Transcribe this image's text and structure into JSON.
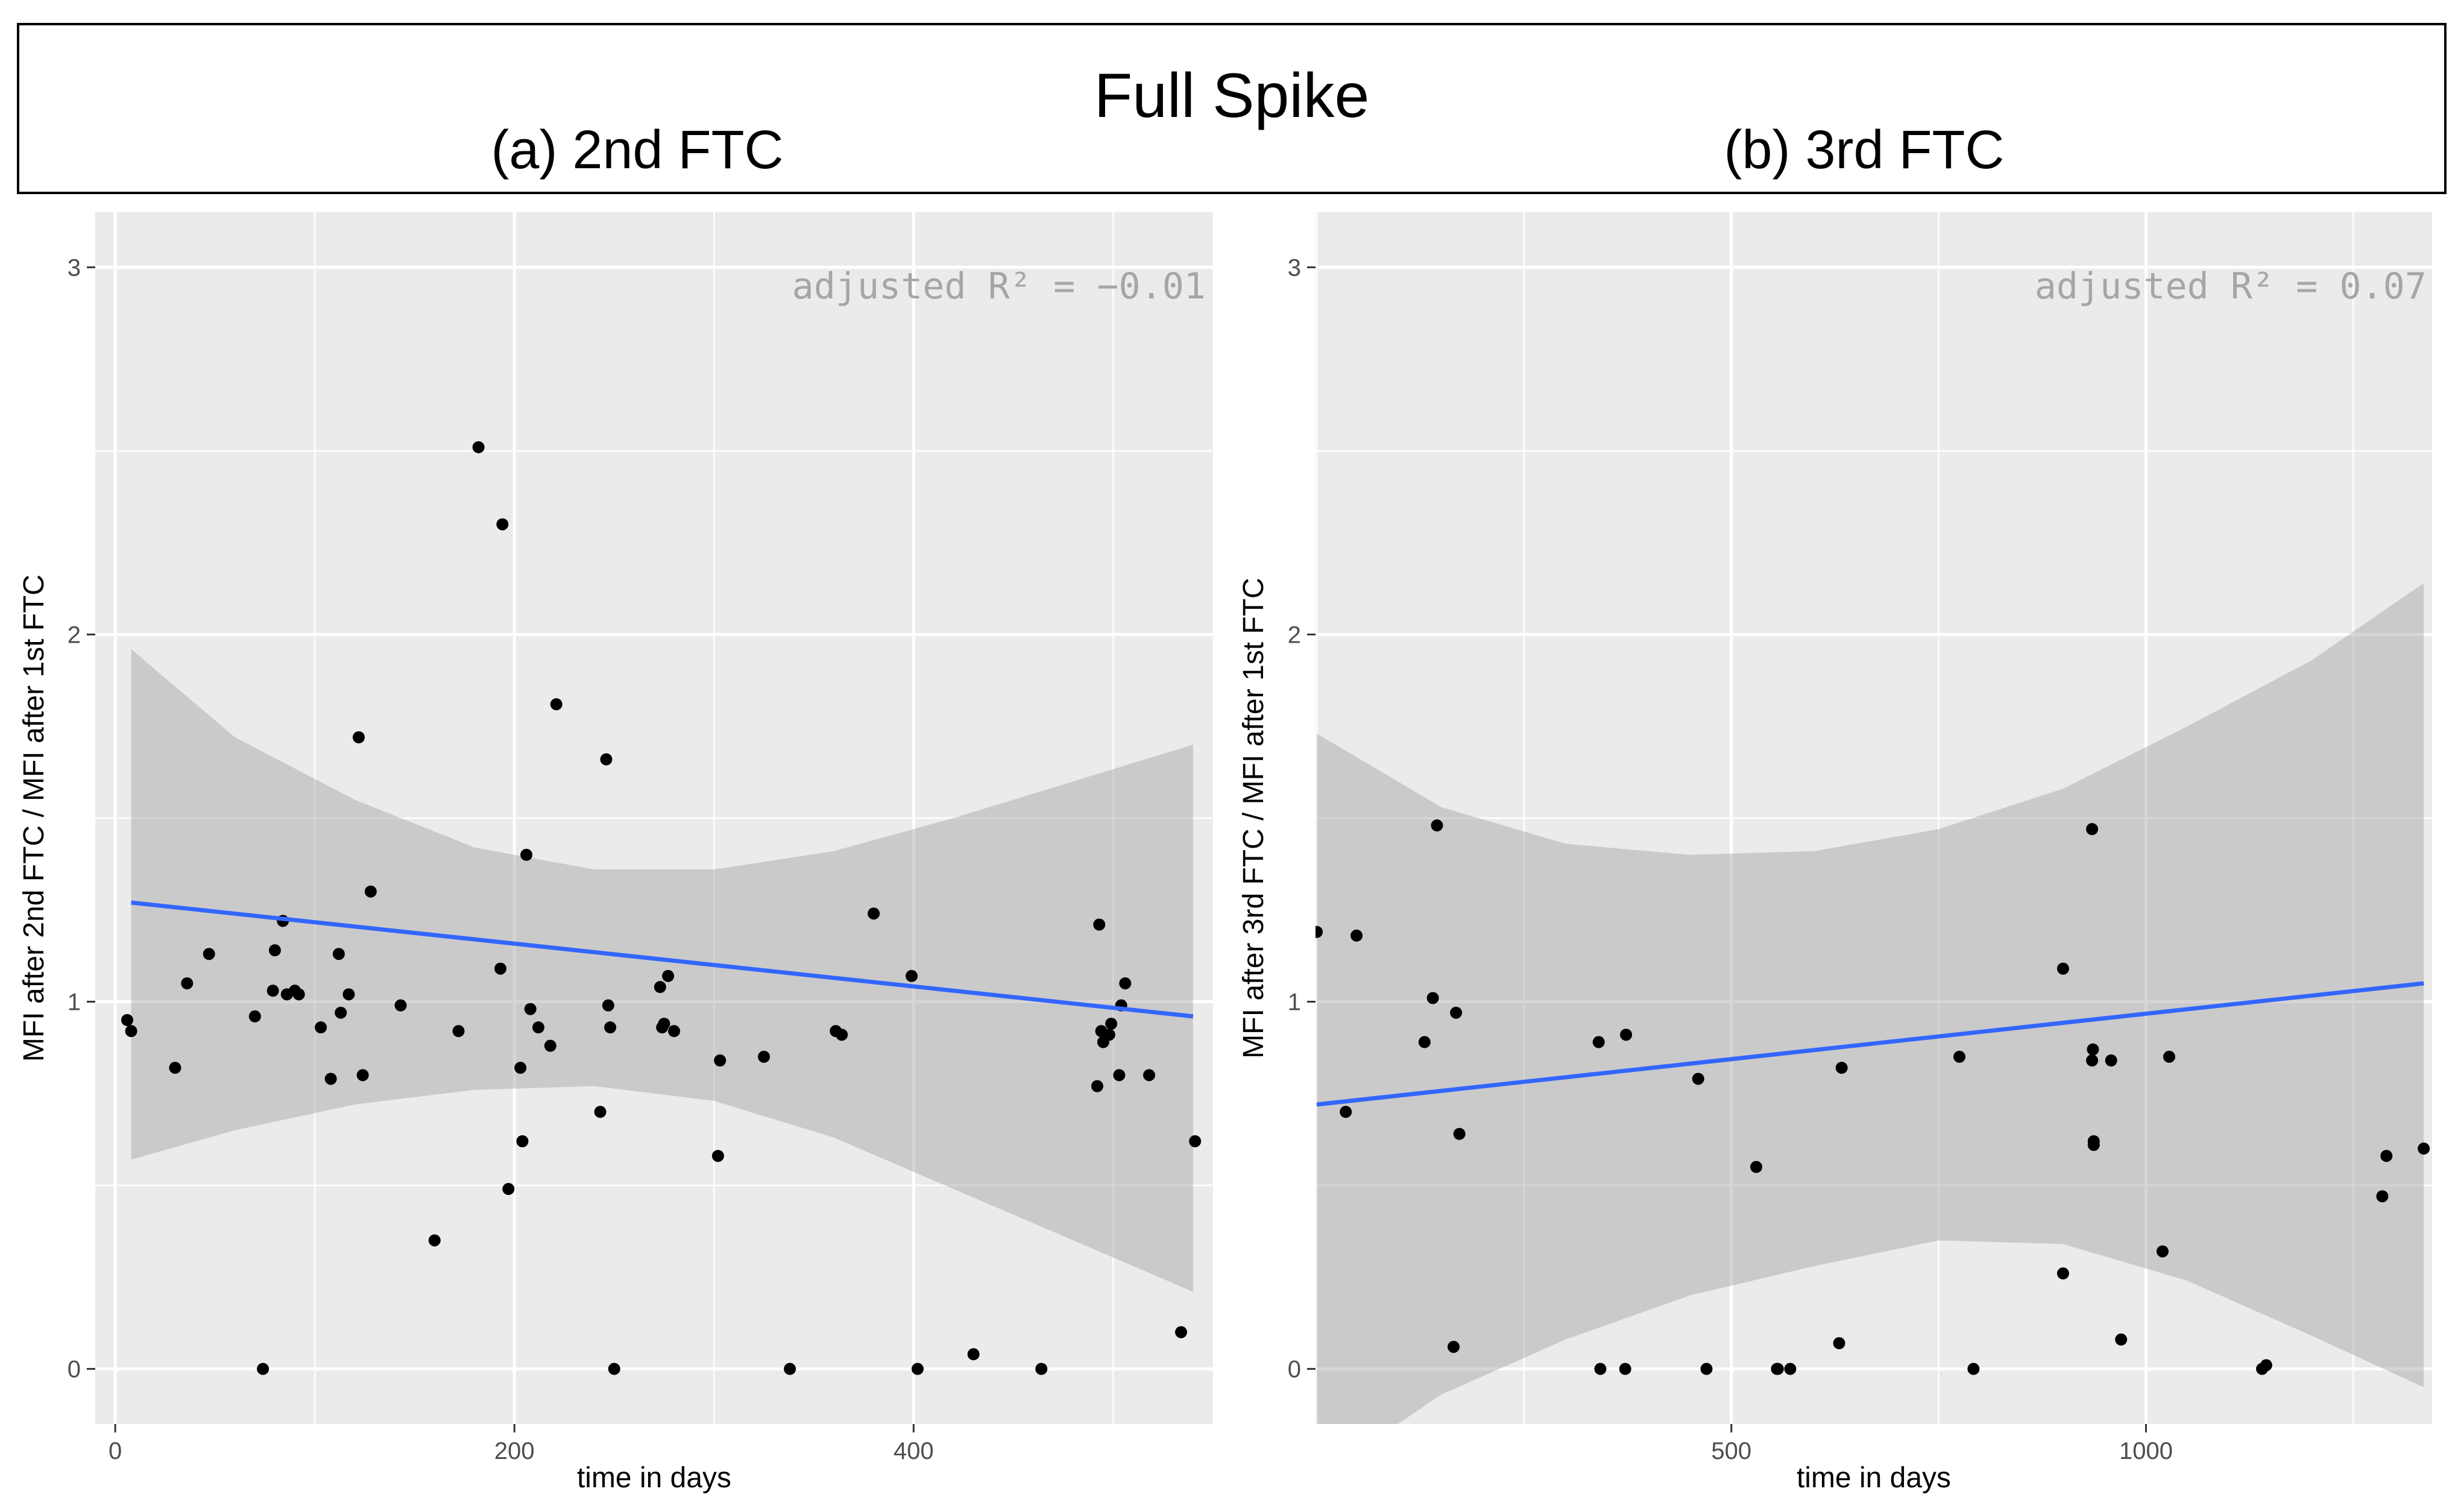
{
  "figure": {
    "title": "Full Spike"
  },
  "chart_data": [
    {
      "type": "scatter",
      "title": "(a) 2nd FTC",
      "xlabel": "time in days",
      "ylabel": "MFI after 2nd FTC / MFI after 1st FTC",
      "xlim": [
        -10,
        550
      ],
      "ylim": [
        -0.15,
        3.15
      ],
      "xticks": [
        0,
        200,
        400
      ],
      "yticks": [
        0,
        1,
        2,
        3
      ],
      "annotation": "adjusted R² =  −0.01",
      "fit_line": {
        "x": [
          8,
          540
        ],
        "y": [
          1.27,
          0.96
        ],
        "color": "#3366FF"
      },
      "confidence_band": {
        "x": [
          8,
          60,
          120,
          180,
          240,
          300,
          360,
          420,
          480,
          540
        ],
        "upper": [
          1.96,
          1.72,
          1.55,
          1.42,
          1.36,
          1.36,
          1.41,
          1.5,
          1.6,
          1.7
        ],
        "lower": [
          0.57,
          0.65,
          0.72,
          0.76,
          0.77,
          0.73,
          0.63,
          0.49,
          0.35,
          0.21
        ]
      },
      "points": {
        "x": [
          6,
          8,
          30,
          36,
          47,
          70,
          74,
          79,
          80,
          84,
          86,
          90,
          92,
          103,
          108,
          112,
          113,
          117,
          122,
          124,
          128,
          143,
          160,
          172,
          182,
          193,
          194,
          197,
          203,
          204,
          206,
          208,
          212,
          218,
          221,
          243,
          246,
          247,
          248,
          250,
          273,
          274,
          275,
          277,
          280,
          302,
          303,
          325,
          338,
          361,
          364,
          380,
          399,
          402,
          430,
          464,
          492,
          493,
          494,
          495,
          498,
          499,
          503,
          504,
          506,
          518,
          534,
          541
        ],
        "y": [
          0.95,
          0.92,
          0.82,
          1.05,
          1.13,
          0.96,
          0,
          1.03,
          1.14,
          1.22,
          1.02,
          1.03,
          1.02,
          0.93,
          0.79,
          1.13,
          0.97,
          1.02,
          1.72,
          0.8,
          1.3,
          0.99,
          0.35,
          0.92,
          2.51,
          1.09,
          2.3,
          0.49,
          0.82,
          0.62,
          1.4,
          0.98,
          0.93,
          0.88,
          1.81,
          0.7,
          1.66,
          0.99,
          0.93,
          0,
          1.04,
          0.93,
          0.94,
          1.07,
          0.92,
          0.58,
          0.84,
          0.85,
          0,
          0.92,
          0.91,
          1.24,
          1.07,
          0,
          0.04,
          0,
          0.77,
          1.21,
          0.92,
          0.89,
          0.91,
          0.94,
          0.8,
          0.99,
          1.05,
          0.8,
          0.1,
          0.62
        ]
      }
    },
    {
      "type": "scatter",
      "title": "(b) 3rd FTC",
      "xlabel": "time in days",
      "ylabel": "MFI after 3rd FTC / MFI after 1st FTC",
      "xlim": [
        -1.5,
        1345
      ],
      "ylim": [
        -0.15,
        3.15
      ],
      "xticks": [
        500,
        1000
      ],
      "yticks": [
        0,
        1,
        2,
        3
      ],
      "annotation": "adjusted R² =  0.07",
      "fit_line": {
        "x": [
          0,
          1335
        ],
        "y": [
          0.72,
          1.05
        ],
        "color": "#3366FF"
      },
      "confidence_band": {
        "x": [
          0,
          150,
          300,
          450,
          600,
          750,
          900,
          1050,
          1200,
          1335
        ],
        "upper": [
          1.73,
          1.53,
          1.43,
          1.4,
          1.41,
          1.47,
          1.58,
          1.75,
          1.93,
          2.14
        ],
        "lower": [
          -0.3,
          -0.07,
          0.08,
          0.2,
          0.28,
          0.35,
          0.34,
          0.24,
          0.09,
          -0.05
        ]
      },
      "points": {
        "x": [
          0,
          35,
          48,
          130,
          140,
          145,
          165,
          168,
          172,
          340,
          342,
          372,
          373,
          460,
          470,
          530,
          555,
          556,
          571,
          630,
          633,
          792,
          775,
          900,
          900,
          935,
          935,
          936,
          937,
          937,
          958,
          970,
          1020,
          1028,
          1140,
          1145,
          1285,
          1290,
          1335
        ],
        "y": [
          1.19,
          0.7,
          1.18,
          0.89,
          1.01,
          1.48,
          0.06,
          0.97,
          0.64,
          0.89,
          0,
          0,
          0.91,
          0.79,
          0.0,
          0.55,
          0,
          0,
          0,
          0.07,
          0.82,
          0,
          0.85,
          1.09,
          0.26,
          1.47,
          0.84,
          0.87,
          0.62,
          0.61,
          0.84,
          0.08,
          0.32,
          0.85,
          0,
          0.01,
          0.47,
          0.58,
          0.6
        ]
      }
    }
  ],
  "colors": {
    "panel_bg": "#EBEBEB",
    "grid": "#FFFFFF",
    "band": "#999999",
    "points": "#000000",
    "fit": "#3366FF"
  }
}
